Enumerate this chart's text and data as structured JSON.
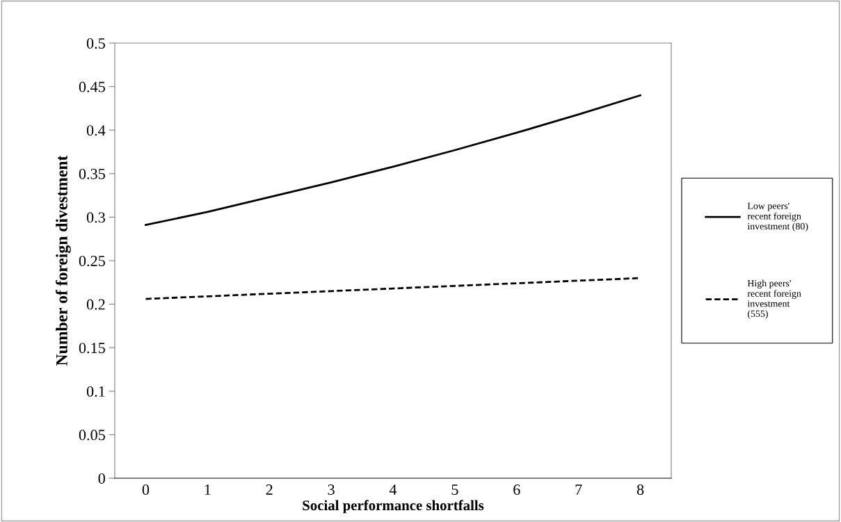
{
  "chart_data": {
    "type": "line",
    "xlabel": "Social performance shortfalls",
    "ylabel": "Number of foreign divestment",
    "categories": [
      "0",
      "1",
      "2",
      "3",
      "4",
      "5",
      "6",
      "7",
      "8"
    ],
    "series": [
      {
        "name": "Low peers' recent foreign investment (80)",
        "color": "#000000",
        "line_style": "solid",
        "values": [
          0.291,
          0.306,
          0.323,
          0.34,
          0.358,
          0.377,
          0.397,
          0.418,
          0.44
        ]
      },
      {
        "name": "High peers' recent foreign investment (555)",
        "color": "#000000",
        "line_style": "dashed",
        "values": [
          0.206,
          0.209,
          0.212,
          0.215,
          0.218,
          0.221,
          0.224,
          0.227,
          0.23
        ]
      }
    ],
    "ylim": [
      0,
      0.5
    ],
    "yticks": [
      0,
      0.05,
      0.1,
      0.15,
      0.2,
      0.25,
      0.3,
      0.35,
      0.4,
      0.45,
      0.5
    ],
    "grid": false,
    "legend": "right",
    "marker": "none"
  }
}
